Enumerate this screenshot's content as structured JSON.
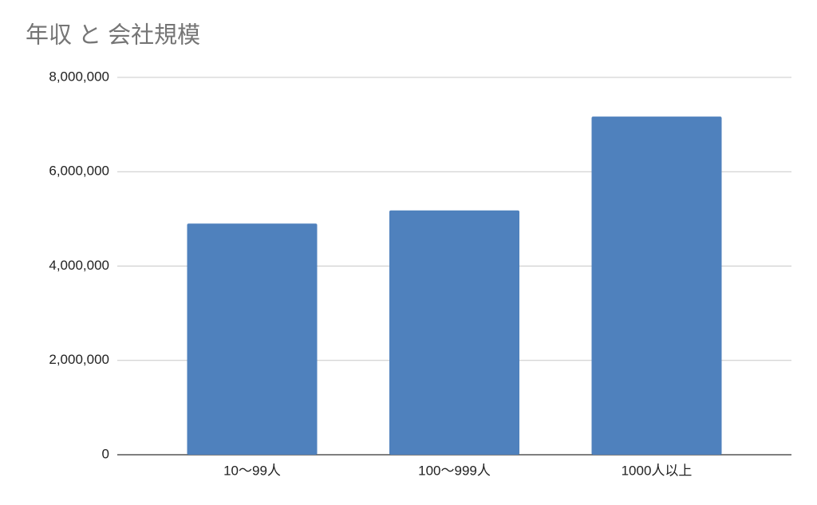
{
  "chart_data": {
    "type": "bar",
    "title": "年収 と 会社規模",
    "categories": [
      "10〜99人",
      "100〜999人",
      "1000人以上"
    ],
    "values": [
      4900000,
      5180000,
      7170000
    ],
    "color": "#4f81bd",
    "ylim": [
      0,
      8000000
    ],
    "yticks": [
      0,
      {
        "value": 2000000,
        "label": "2,000,000"
      },
      {
        "value": 4000000,
        "label": "4,000,000"
      },
      {
        "value": 6000000,
        "label": "6,000,000"
      },
      {
        "value": 8000000,
        "label": "8,000,000"
      }
    ],
    "grid": true
  }
}
